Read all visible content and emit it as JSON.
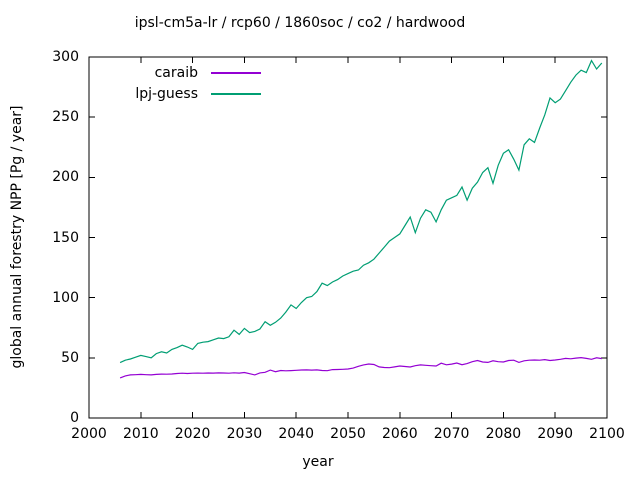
{
  "chart_data": {
    "type": "line",
    "title": "ipsl-cm5a-lr / rcp60 / 1860soc / co2 / hardwood",
    "xlabel": "year",
    "ylabel": "global annual forestry NPP [Pg / year]",
    "xlim": [
      2000,
      2100
    ],
    "ylim": [
      0,
      300
    ],
    "xticks": [
      2000,
      2010,
      2020,
      2030,
      2040,
      2050,
      2060,
      2070,
      2080,
      2090,
      2100
    ],
    "yticks": [
      0,
      50,
      100,
      150,
      200,
      250,
      300
    ],
    "grid": false,
    "legend_position": "top-left",
    "x": [
      2006,
      2007,
      2008,
      2009,
      2010,
      2011,
      2012,
      2013,
      2014,
      2015,
      2016,
      2017,
      2018,
      2019,
      2020,
      2021,
      2022,
      2023,
      2024,
      2025,
      2026,
      2027,
      2028,
      2029,
      2030,
      2031,
      2032,
      2033,
      2034,
      2035,
      2036,
      2037,
      2038,
      2039,
      2040,
      2041,
      2042,
      2043,
      2044,
      2045,
      2046,
      2047,
      2048,
      2049,
      2050,
      2051,
      2052,
      2053,
      2054,
      2055,
      2056,
      2057,
      2058,
      2059,
      2060,
      2061,
      2062,
      2063,
      2064,
      2065,
      2066,
      2067,
      2068,
      2069,
      2070,
      2071,
      2072,
      2073,
      2074,
      2075,
      2076,
      2077,
      2078,
      2079,
      2080,
      2081,
      2082,
      2083,
      2084,
      2085,
      2086,
      2087,
      2088,
      2089,
      2090,
      2091,
      2092,
      2093,
      2094,
      2095,
      2096,
      2097,
      2098,
      2099
    ],
    "series": [
      {
        "name": "caraib",
        "color": "#9400D3",
        "values": [
          33.3,
          35,
          35.8,
          36,
          36.2,
          36,
          35.8,
          36.2,
          36.5,
          36.4,
          36.6,
          37,
          37.2,
          37,
          37.2,
          37.3,
          37.2,
          37.4,
          37.3,
          37.5,
          37.4,
          37.2,
          37.6,
          37.3,
          37.8,
          36.8,
          35.8,
          37.5,
          38,
          39.8,
          38.5,
          39.5,
          39.2,
          39.4,
          39.6,
          39.9,
          40,
          39.8,
          40,
          39.5,
          39.3,
          40.2,
          40.3,
          40.5,
          40.7,
          41.5,
          43,
          44.1,
          44.9,
          44.5,
          42.5,
          42,
          41.8,
          42.5,
          43.2,
          42.8,
          42.4,
          43.5,
          44.1,
          43.8,
          43.5,
          43.2,
          45.5,
          44.2,
          44.8,
          45.7,
          44.3,
          45.2,
          46.8,
          47.8,
          46.5,
          46.2,
          47.5,
          46.8,
          46.5,
          47.8,
          48,
          46.2,
          47.5,
          48,
          48.2,
          48,
          48.5,
          47.8,
          48.2,
          48.8,
          49.5,
          49.2,
          49.8,
          50.2,
          49.5,
          48.8,
          50,
          49.4
        ]
      },
      {
        "name": "lpj-guess",
        "color": "#009E73",
        "values": [
          46,
          48,
          49,
          50.5,
          52,
          51,
          50,
          53.5,
          55,
          54,
          57,
          58.5,
          60.5,
          59,
          57,
          62,
          63,
          63.5,
          65,
          66.5,
          66,
          67.5,
          73,
          69.5,
          74.5,
          71,
          72,
          74,
          80,
          77,
          79.5,
          83,
          88,
          94,
          91,
          96,
          100,
          101,
          105,
          112,
          110,
          113,
          115,
          118,
          120,
          122,
          123,
          127,
          129,
          132,
          137,
          142,
          147,
          150,
          153,
          160,
          167,
          154,
          166,
          173,
          171,
          163,
          173,
          181,
          183,
          185,
          192,
          181,
          191,
          196,
          204,
          208,
          195,
          210,
          220,
          223,
          215,
          206,
          227,
          232,
          229,
          241,
          252,
          266,
          262,
          265,
          272,
          279,
          285,
          289,
          287,
          297,
          290,
          295
        ]
      }
    ]
  },
  "frame_color": "#000000",
  "text_color": "#000000"
}
